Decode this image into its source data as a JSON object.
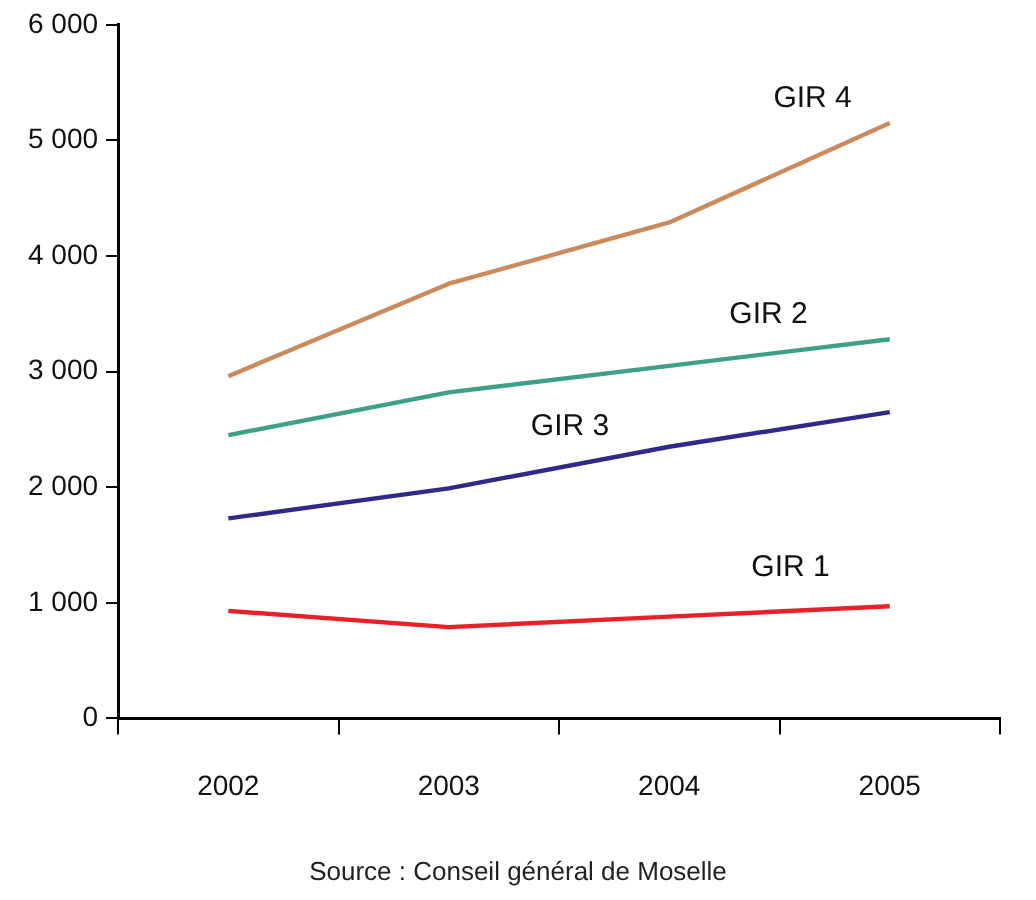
{
  "chart_data": {
    "type": "line",
    "categories": [
      "2002",
      "2003",
      "2004",
      "2005"
    ],
    "series": [
      {
        "name": "GIR 4",
        "color": "#c98b5c",
        "values": [
          2960,
          3760,
          4290,
          5150
        ]
      },
      {
        "name": "GIR 2",
        "color": "#3fa08a",
        "values": [
          2450,
          2820,
          3050,
          3280
        ]
      },
      {
        "name": "GIR 3",
        "color": "#2e2a8a",
        "values": [
          1730,
          1990,
          2350,
          2650
        ]
      },
      {
        "name": "GIR 1",
        "color": "#e8202a",
        "values": [
          930,
          790,
          880,
          970
        ]
      }
    ],
    "ylim": [
      0,
      6000
    ],
    "yticks": [
      {
        "value": 0,
        "label": "0"
      },
      {
        "value": 1000,
        "label": "1 000"
      },
      {
        "value": 2000,
        "label": "2 000"
      },
      {
        "value": 3000,
        "label": "3 000"
      },
      {
        "value": 4000,
        "label": "4 000"
      },
      {
        "value": 5000,
        "label": "5 000"
      },
      {
        "value": 6000,
        "label": "6 000"
      }
    ],
    "grid": false,
    "legend": false,
    "marker": "none",
    "line_style": "solid",
    "annotations": [
      "Source : Conseil général de Moselle"
    ]
  }
}
